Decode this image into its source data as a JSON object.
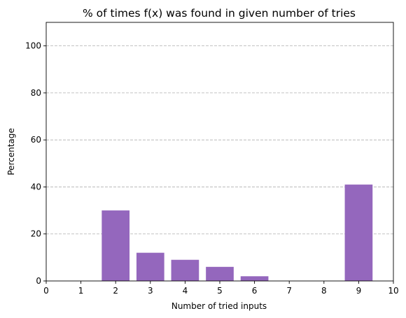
{
  "chart_data": {
    "type": "bar",
    "title": "% of times f(x) was found in given number of tries",
    "xlabel": "Number of tried inputs",
    "ylabel": "Percentage",
    "x": [
      2,
      3,
      4,
      5,
      6,
      9
    ],
    "values": [
      30,
      12,
      9,
      6,
      2,
      41
    ],
    "bar_color": "#9467bd",
    "xlim": [
      0,
      10
    ],
    "ylim": [
      0,
      110
    ],
    "xticks": [
      "0",
      "1",
      "2",
      "3",
      "4",
      "5",
      "6",
      "7",
      "8",
      "9",
      "10"
    ],
    "yticks": [
      "0",
      "20",
      "40",
      "60",
      "80",
      "100"
    ],
    "grid": "y-dashed",
    "legend": "none"
  }
}
